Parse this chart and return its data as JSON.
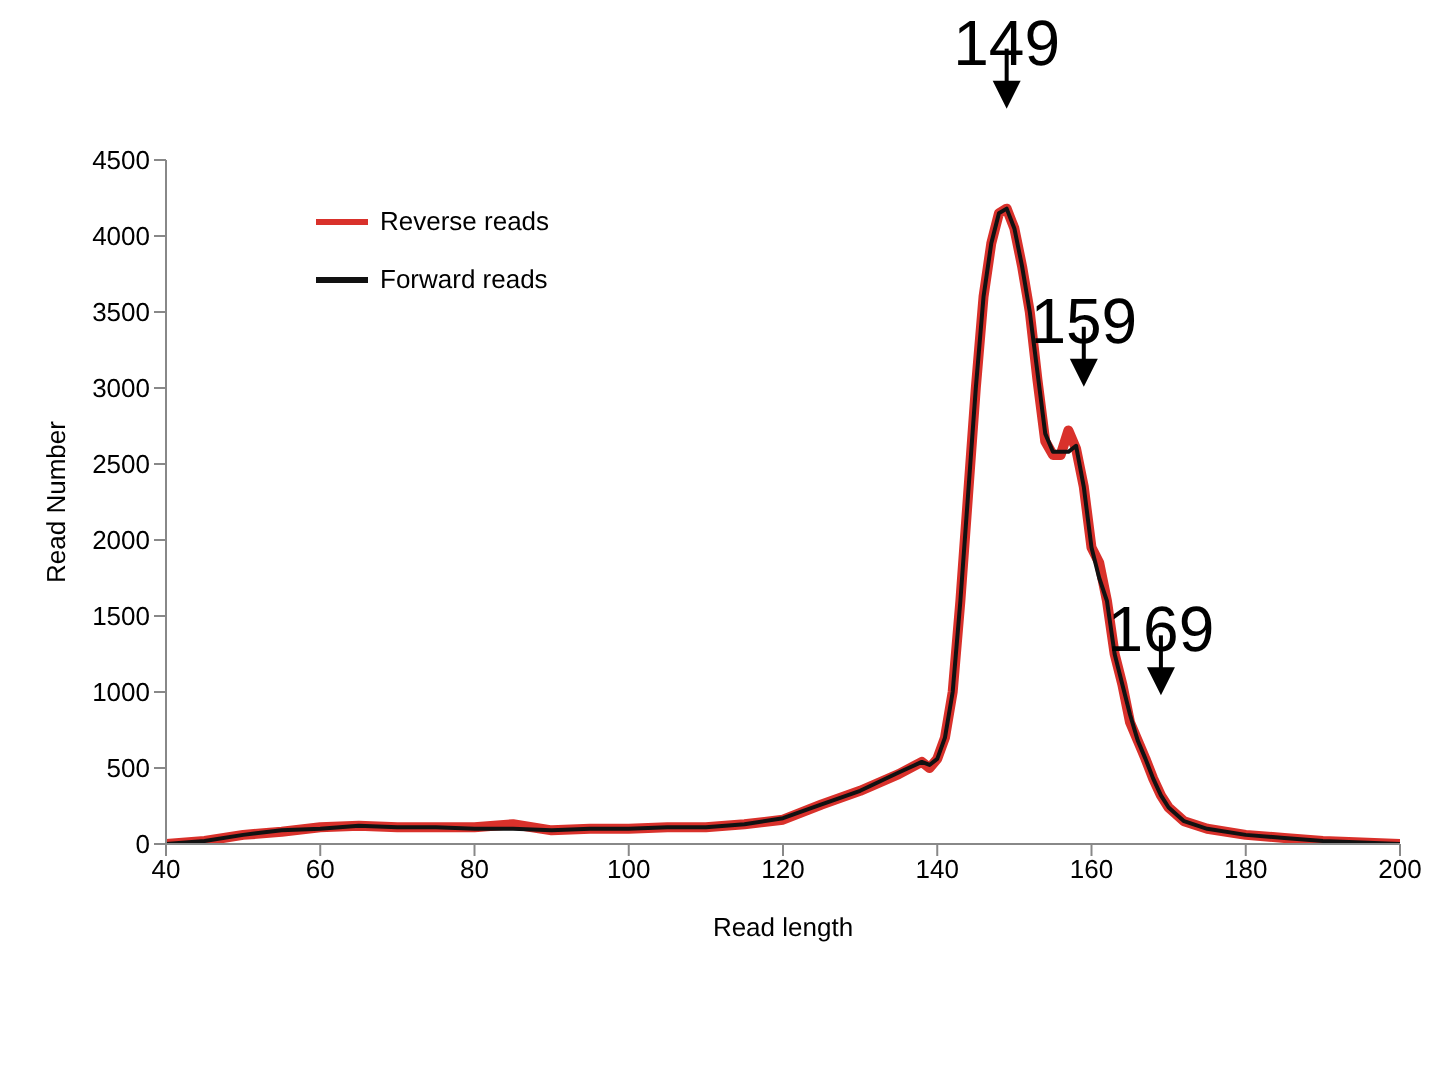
{
  "chart_data": {
    "type": "line",
    "xlabel": "Read length",
    "ylabel": "Read Number",
    "xlim": [
      40,
      200
    ],
    "xticks": [
      40,
      60,
      80,
      100,
      120,
      140,
      160,
      180,
      200
    ],
    "ylim": [
      0,
      4500
    ],
    "yticks": [
      0,
      500,
      1000,
      1500,
      2000,
      2500,
      3000,
      3500,
      4000,
      4500
    ],
    "grid": false,
    "legend": "top left",
    "marker": "none",
    "line_style": "solid",
    "series": [
      {
        "name": "Reverse reads",
        "color": "#d9312b",
        "x": [
          40,
          45,
          50,
          55,
          60,
          65,
          70,
          75,
          80,
          85,
          90,
          95,
          100,
          105,
          110,
          115,
          120,
          125,
          130,
          135,
          138,
          139,
          140,
          141,
          142,
          143,
          144,
          145,
          146,
          147,
          148,
          149,
          150,
          151,
          152,
          153,
          154,
          155,
          156,
          157,
          158,
          159,
          160,
          161,
          162,
          163,
          164,
          165,
          166,
          167,
          168,
          169,
          170,
          172,
          175,
          180,
          185,
          190,
          195,
          200
        ],
        "values": [
          0,
          20,
          60,
          80,
          110,
          120,
          110,
          110,
          110,
          130,
          90,
          100,
          100,
          110,
          110,
          130,
          160,
          260,
          350,
          460,
          540,
          500,
          560,
          700,
          1000,
          1600,
          2300,
          3000,
          3600,
          3950,
          4150,
          4180,
          4050,
          3800,
          3500,
          3050,
          2650,
          2560,
          2560,
          2720,
          2600,
          2350,
          1950,
          1850,
          1600,
          1250,
          1050,
          800,
          680,
          560,
          430,
          320,
          240,
          150,
          100,
          60,
          40,
          20,
          10,
          0
        ]
      },
      {
        "name": "Forward reads",
        "color": "#111111",
        "x": [
          40,
          45,
          50,
          55,
          60,
          65,
          70,
          75,
          80,
          85,
          90,
          95,
          100,
          105,
          110,
          115,
          120,
          125,
          130,
          135,
          138,
          139,
          140,
          141,
          142,
          143,
          144,
          145,
          146,
          147,
          148,
          149,
          150,
          151,
          152,
          153,
          154,
          155,
          156,
          157,
          158,
          159,
          160,
          161,
          162,
          163,
          164,
          165,
          166,
          167,
          168,
          169,
          170,
          172,
          175,
          180,
          185,
          190,
          195,
          200
        ],
        "values": [
          0,
          20,
          60,
          90,
          100,
          120,
          110,
          110,
          100,
          100,
          90,
          100,
          100,
          110,
          110,
          130,
          170,
          260,
          350,
          470,
          540,
          520,
          560,
          700,
          1000,
          1600,
          2300,
          3000,
          3600,
          3950,
          4150,
          4180,
          4050,
          3800,
          3500,
          3100,
          2700,
          2580,
          2580,
          2580,
          2620,
          2350,
          1950,
          1750,
          1600,
          1250,
          1050,
          850,
          680,
          560,
          430,
          320,
          240,
          150,
          100,
          60,
          40,
          20,
          10,
          0
        ]
      }
    ],
    "annotations": [
      {
        "text": "149",
        "x": 149,
        "y": 4180
      },
      {
        "text": "159",
        "x": 159,
        "y": 2350
      },
      {
        "text": "169",
        "x": 169,
        "y": 320
      }
    ]
  }
}
